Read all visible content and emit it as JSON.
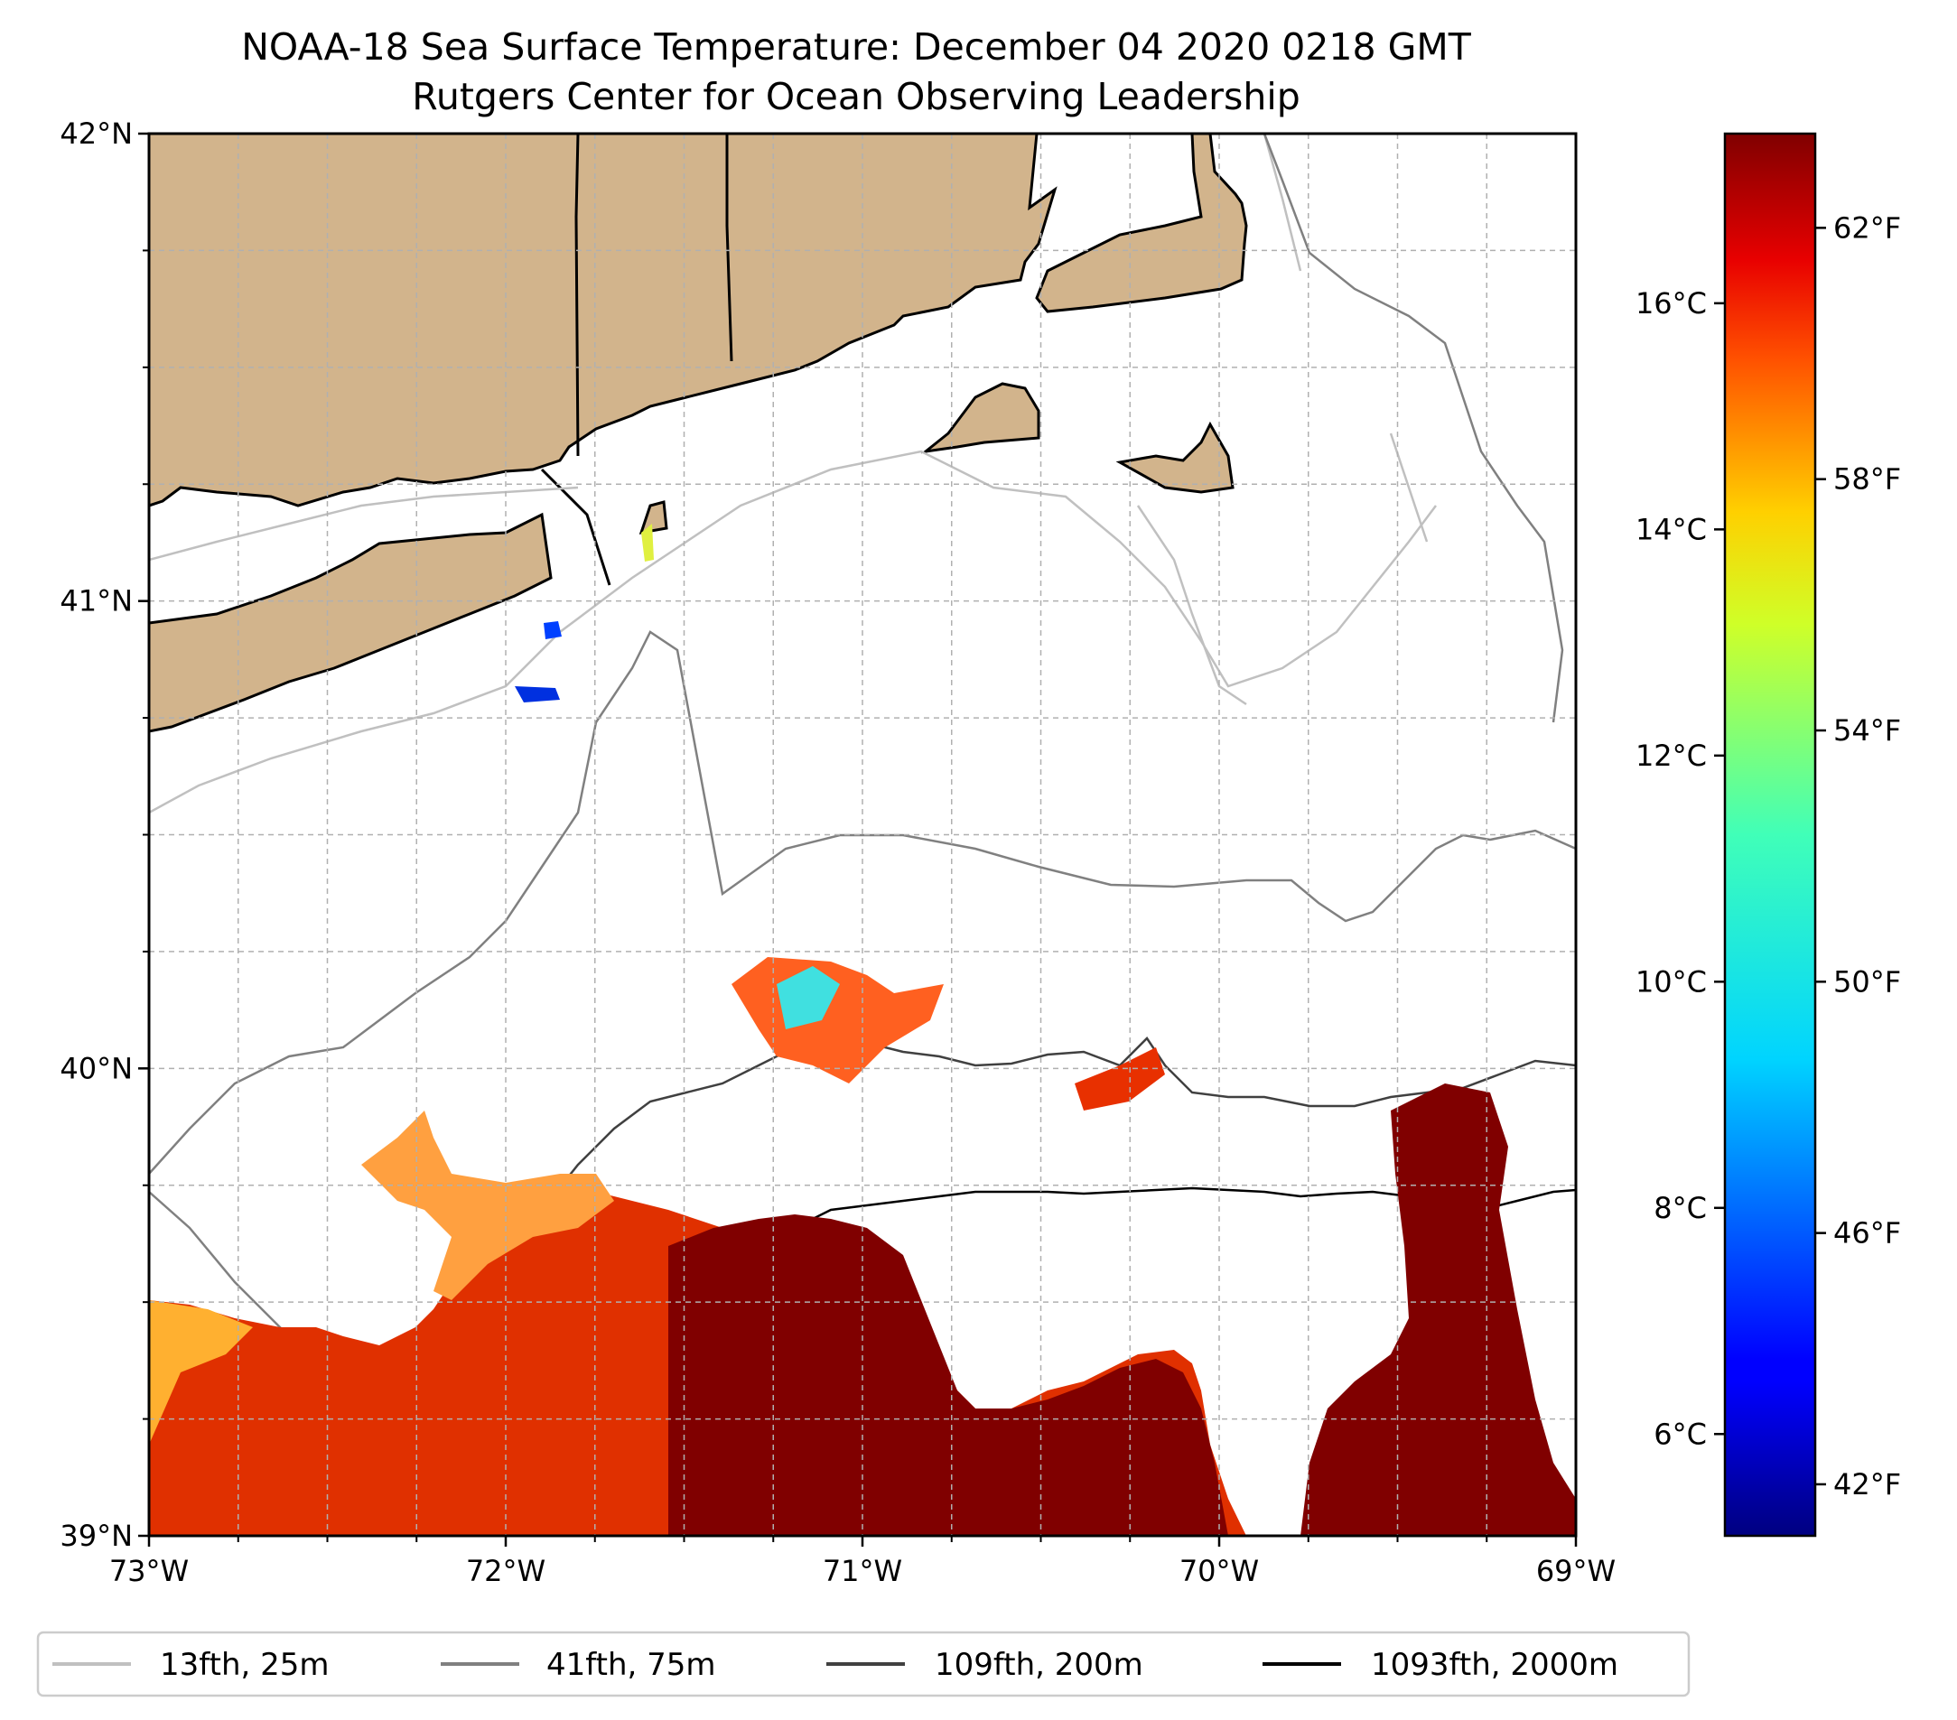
{
  "title": {
    "line1": "NOAA-18 Sea Surface Temperature: December 04 2020 0218 GMT",
    "line2": "Rutgers Center for Ocean Observing Leadership"
  },
  "map": {
    "lon_range": [
      -73,
      -69
    ],
    "lat_range": [
      39,
      42
    ],
    "lon_ticks": [
      {
        "value": -73,
        "label": "73°W"
      },
      {
        "value": -72,
        "label": "72°W"
      },
      {
        "value": -71,
        "label": "71°W"
      },
      {
        "value": -70,
        "label": "70°W"
      },
      {
        "value": -69,
        "label": "69°W"
      }
    ],
    "lat_ticks": [
      {
        "value": 39,
        "label": "39°N"
      },
      {
        "value": 40,
        "label": "40°N"
      },
      {
        "value": 41,
        "label": "41°N"
      },
      {
        "value": 42,
        "label": "42°N"
      }
    ],
    "land_color": "#d2b48c",
    "gridlines": "dashed"
  },
  "colorbar": {
    "colormap": "jet",
    "range_c": [
      5.1,
      17.5
    ],
    "celsius_ticks": [
      {
        "value": 6,
        "label": "6°C"
      },
      {
        "value": 8,
        "label": "8°C"
      },
      {
        "value": 10,
        "label": "10°C"
      },
      {
        "value": 12,
        "label": "12°C"
      },
      {
        "value": 14,
        "label": "14°C"
      },
      {
        "value": 16,
        "label": "16°C"
      }
    ],
    "fahrenheit_ticks": [
      {
        "value": 42,
        "label": "42°F"
      },
      {
        "value": 46,
        "label": "46°F"
      },
      {
        "value": 50,
        "label": "50°F"
      },
      {
        "value": 54,
        "label": "54°F"
      },
      {
        "value": 58,
        "label": "58°F"
      },
      {
        "value": 62,
        "label": "62°F"
      }
    ]
  },
  "legend": [
    {
      "label": "13fth, 25m",
      "color": "#c0c0c0"
    },
    {
      "label": "41fth, 75m",
      "color": "#808080"
    },
    {
      "label": "109fth, 200m",
      "color": "#404040"
    },
    {
      "label": "1093fth, 2000m",
      "color": "#000000"
    }
  ]
}
